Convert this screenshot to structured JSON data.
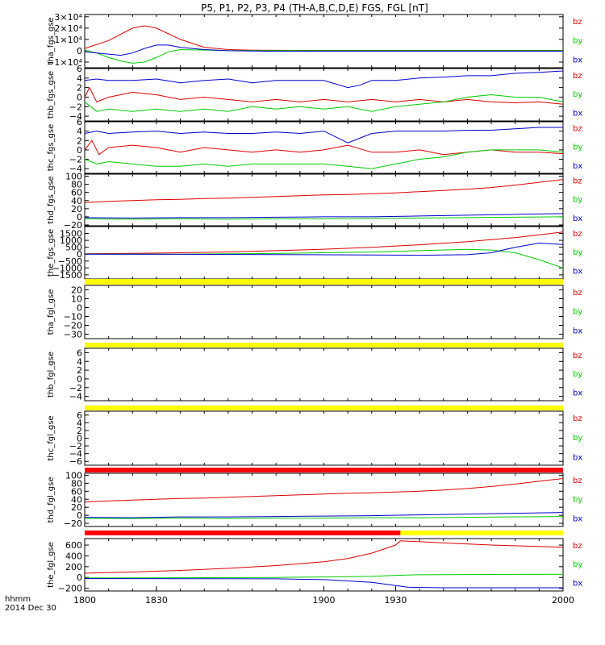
{
  "title": "P5, P1, P2, P3, P4 (TH-A,B,C,D,E) FGS, FGL [nT]",
  "footer": {
    "line1": "hhmm",
    "line2": "2014 Dec 30"
  },
  "xaxis": {
    "range": [
      1800,
      2000
    ],
    "tick_values": [
      1800,
      1830,
      1900,
      1930,
      2000
    ],
    "tick_labels": [
      "1800",
      "1830",
      "1900",
      "1930",
      "2000"
    ]
  },
  "colors": {
    "bz": "#dd0000",
    "by": "#00cc00",
    "bx": "#0000cc",
    "flag_yellow": "#ffff00",
    "flag_red": "#ff0000"
  },
  "chart_data": [
    {
      "type": "line",
      "ylabel": "tha_fgs_gse",
      "ylim": [
        -15000,
        32000
      ],
      "ytick_labels": [
        "3×10⁴",
        "2×10⁴",
        "1×10⁴",
        "0",
        "−1×10⁴"
      ],
      "ytick_values": [
        30000,
        20000,
        10000,
        0,
        -10000
      ],
      "legend": [
        "bz",
        "by",
        "bx"
      ],
      "series": [
        {
          "name": "bz",
          "x": [
            1800,
            1810,
            1820,
            1825,
            1830,
            1840,
            1850,
            1860,
            1870,
            1880,
            1890,
            1900,
            1920,
            2000
          ],
          "y": [
            2000,
            9000,
            20000,
            22000,
            20000,
            10000,
            3000,
            1000,
            500,
            400,
            300,
            300,
            300,
            300
          ]
        },
        {
          "name": "by",
          "x": [
            1800,
            1805,
            1810,
            1815,
            1820,
            1825,
            1830,
            1835,
            1840,
            1850,
            1860,
            1880,
            1920,
            2000
          ],
          "y": [
            500,
            -2000,
            -6000,
            -9000,
            -11000,
            -10000,
            -6000,
            -1000,
            1000,
            600,
            200,
            100,
            100,
            100
          ]
        },
        {
          "name": "bx",
          "x": [
            1800,
            1810,
            1815,
            1820,
            1825,
            1830,
            1835,
            1840,
            1850,
            1860,
            1880,
            1920,
            2000
          ],
          "y": [
            -1000,
            -3000,
            -4000,
            -2000,
            2000,
            5000,
            5000,
            3000,
            1000,
            0,
            -500,
            -400,
            -400
          ]
        }
      ]
    },
    {
      "type": "line",
      "ylabel": "thb_fgs_gse",
      "ylim": [
        -5,
        6
      ],
      "ytick_labels": [
        "6",
        "4",
        "2",
        "0",
        "−2",
        "−4"
      ],
      "ytick_values": [
        6,
        4,
        2,
        0,
        -2,
        -4
      ],
      "legend": [
        "bz",
        "by",
        "bx"
      ],
      "series": [
        {
          "name": "bz",
          "x": [
            1800,
            1802,
            1805,
            1810,
            1820,
            1830,
            1840,
            1850,
            1860,
            1870,
            1880,
            1890,
            1900,
            1910,
            1920,
            1930,
            1940,
            1950,
            1960,
            1970,
            1980,
            1990,
            2000
          ],
          "y": [
            0,
            2,
            -1,
            0,
            1,
            0.5,
            -0.5,
            0,
            -0.5,
            -1,
            -0.5,
            -1,
            -0.5,
            -1,
            -0.5,
            -1,
            -0.5,
            -1,
            -0.5,
            -1,
            -1.2,
            -1,
            -1.5
          ]
        },
        {
          "name": "by",
          "x": [
            1800,
            1805,
            1810,
            1820,
            1830,
            1840,
            1850,
            1860,
            1870,
            1880,
            1890,
            1900,
            1910,
            1920,
            1930,
            1940,
            1950,
            1960,
            1970,
            1980,
            1990,
            2000
          ],
          "y": [
            -1,
            -3,
            -2.5,
            -3,
            -2.5,
            -3,
            -2.5,
            -3,
            -2,
            -2.5,
            -2,
            -2.5,
            -2,
            -3,
            -2,
            -1.5,
            -1,
            0,
            0.5,
            0,
            0,
            -1
          ]
        },
        {
          "name": "bx",
          "x": [
            1800,
            1805,
            1810,
            1820,
            1830,
            1840,
            1850,
            1860,
            1870,
            1880,
            1890,
            1900,
            1910,
            1915,
            1920,
            1930,
            1940,
            1950,
            1960,
            1970,
            1980,
            1990,
            2000
          ],
          "y": [
            3.5,
            3.8,
            3.5,
            3.5,
            3.8,
            3,
            3.5,
            3.8,
            3,
            3.5,
            3.5,
            3.5,
            2,
            2.5,
            3.5,
            3.5,
            4,
            4.2,
            4.5,
            4.5,
            5,
            5.2,
            5.5
          ]
        }
      ]
    },
    {
      "type": "line",
      "ylabel": "thc_fgs_gse",
      "ylim": [
        -5,
        6
      ],
      "ytick_labels": [
        "6",
        "4",
        "2",
        "0",
        "−2",
        "−4"
      ],
      "ytick_values": [
        6,
        4,
        2,
        0,
        -2,
        -4
      ],
      "legend": [
        "bz",
        "by",
        "bx"
      ],
      "series": [
        {
          "name": "bz",
          "x": [
            1800,
            1803,
            1806,
            1810,
            1820,
            1830,
            1840,
            1850,
            1860,
            1870,
            1880,
            1890,
            1900,
            1910,
            1920,
            1930,
            1940,
            1950,
            1960,
            1970,
            1980,
            1990,
            2000
          ],
          "y": [
            0,
            2,
            -1,
            0.5,
            1,
            0.5,
            -0.5,
            0.5,
            0,
            -0.5,
            0,
            -0.5,
            0,
            1,
            -0.5,
            -0.5,
            0,
            -1,
            -0.5,
            0,
            -0.5,
            -0.5,
            -0.8
          ]
        },
        {
          "name": "by",
          "x": [
            1800,
            1805,
            1810,
            1820,
            1830,
            1840,
            1850,
            1860,
            1870,
            1880,
            1890,
            1900,
            1910,
            1920,
            1930,
            1940,
            1950,
            1960,
            1970,
            1980,
            1990,
            2000
          ],
          "y": [
            -2,
            -3,
            -2.5,
            -3,
            -3.5,
            -3.5,
            -3,
            -3.5,
            -3,
            -3,
            -3,
            -3,
            -3.5,
            -4,
            -3,
            -2,
            -1.5,
            -0.5,
            0,
            0,
            0,
            -0.5
          ]
        },
        {
          "name": "bx",
          "x": [
            1800,
            1805,
            1810,
            1820,
            1830,
            1840,
            1850,
            1860,
            1870,
            1880,
            1890,
            1900,
            1910,
            1915,
            1920,
            1930,
            1940,
            1950,
            1960,
            1970,
            1980,
            1990,
            2000
          ],
          "y": [
            3.5,
            4,
            3.5,
            3.8,
            4,
            3.5,
            3.8,
            3.5,
            3.5,
            3.8,
            3.5,
            4,
            1.5,
            2.5,
            3.5,
            4,
            4,
            4,
            4.2,
            4.2,
            4.5,
            4.8,
            4.8
          ]
        }
      ]
    },
    {
      "type": "line",
      "ylabel": "thd_fgs_gse",
      "ylim": [
        -22,
        105
      ],
      "ytick_labels": [
        "100",
        "80",
        "60",
        "40",
        "20",
        "0",
        "−20"
      ],
      "ytick_values": [
        100,
        80,
        60,
        40,
        20,
        0,
        -20
      ],
      "legend": [
        "bz",
        "by",
        "bx"
      ],
      "series": [
        {
          "name": "bz",
          "x": [
            1800,
            1810,
            1820,
            1830,
            1840,
            1850,
            1860,
            1870,
            1880,
            1890,
            1900,
            1910,
            1920,
            1930,
            1940,
            1950,
            1960,
            1970,
            1980,
            1990,
            2000
          ],
          "y": [
            35,
            38,
            40,
            42,
            43,
            45,
            46,
            48,
            50,
            52,
            54,
            55,
            57,
            59,
            62,
            65,
            68,
            72,
            78,
            85,
            92
          ]
        },
        {
          "name": "by",
          "x": [
            1800,
            1820,
            1840,
            1860,
            1880,
            1900,
            1920,
            1940,
            1960,
            1980,
            2000
          ],
          "y": [
            -5,
            -6,
            -5,
            -6,
            -5,
            -5,
            -4,
            -3,
            -2,
            -1,
            0
          ]
        },
        {
          "name": "bx",
          "x": [
            1800,
            1820,
            1840,
            1860,
            1880,
            1900,
            1920,
            1940,
            1960,
            1980,
            2000
          ],
          "y": [
            -2,
            -3,
            -2,
            -2,
            -1,
            0,
            0,
            2,
            4,
            6,
            8
          ]
        }
      ]
    },
    {
      "type": "line",
      "ylabel": "the_fgs_gse",
      "ylim": [
        -1800,
        2000
      ],
      "ytick_labels": [
        "1500",
        "1000",
        "500",
        "0",
        "−500",
        "−1000",
        "−1500"
      ],
      "ytick_values": [
        1500,
        1000,
        500,
        0,
        -500,
        -1000,
        -1500
      ],
      "legend": [
        "bz",
        "by",
        "bx"
      ],
      "series": [
        {
          "name": "bz",
          "x": [
            1800,
            1820,
            1840,
            1860,
            1880,
            1900,
            1920,
            1940,
            1960,
            1980,
            2000
          ],
          "y": [
            30,
            60,
            100,
            160,
            250,
            360,
            500,
            680,
            900,
            1200,
            1600
          ]
        },
        {
          "name": "by",
          "x": [
            1800,
            1840,
            1880,
            1920,
            1940,
            1960,
            1970,
            1980,
            1990,
            2000
          ],
          "y": [
            0,
            0,
            50,
            150,
            250,
            350,
            300,
            100,
            -400,
            -1000
          ]
        },
        {
          "name": "bx",
          "x": [
            1800,
            1840,
            1880,
            1920,
            1940,
            1960,
            1970,
            1980,
            1990,
            2000
          ],
          "y": [
            0,
            -10,
            -30,
            -60,
            -80,
            -40,
            100,
            500,
            800,
            700
          ]
        }
      ]
    },
    {
      "type": "line",
      "ylabel": "tha_fgl_gse",
      "ylim": [
        -35,
        25
      ],
      "ytick_labels": [
        "20",
        "10",
        "0",
        "−10",
        "−20",
        "−30"
      ],
      "ytick_values": [
        20,
        10,
        0,
        -10,
        -20,
        -30
      ],
      "legend": [
        "bz",
        "by",
        "bx"
      ],
      "series": []
    },
    {
      "type": "line",
      "ylabel": "thb_fgl_gse",
      "ylim": [
        -5,
        7
      ],
      "ytick_labels": [
        "6",
        "4",
        "2",
        "0",
        "−2",
        "−4"
      ],
      "ytick_values": [
        6,
        4,
        2,
        0,
        -2,
        -4
      ],
      "legend": [
        "bz",
        "by",
        "bx"
      ],
      "series": []
    },
    {
      "type": "line",
      "ylabel": "thc_fgl_gse",
      "ylim": [
        -7,
        7
      ],
      "ytick_labels": [
        "6",
        "4",
        "2",
        "0",
        "−2",
        "−4",
        "−6"
      ],
      "ytick_values": [
        6,
        4,
        2,
        0,
        -2,
        -4,
        -6
      ],
      "legend": [
        "bz",
        "by",
        "bx"
      ],
      "series": []
    },
    {
      "type": "line",
      "ylabel": "thd_fgl_gse",
      "ylim": [
        -28,
        105
      ],
      "ytick_labels": [
        "100",
        "80",
        "60",
        "40",
        "20",
        "0",
        "−20"
      ],
      "ytick_values": [
        100,
        80,
        60,
        40,
        20,
        0,
        -20
      ],
      "legend": [
        "bz",
        "by",
        "bx"
      ],
      "series": [
        {
          "name": "bz",
          "x": [
            1800,
            1810,
            1820,
            1830,
            1840,
            1850,
            1860,
            1870,
            1880,
            1890,
            1900,
            1910,
            1920,
            1930,
            1940,
            1950,
            1960,
            1970,
            1980,
            1990,
            2000
          ],
          "y": [
            33,
            36,
            38,
            40,
            42,
            43,
            45,
            47,
            49,
            51,
            53,
            55,
            56,
            58,
            60,
            63,
            67,
            72,
            78,
            85,
            92
          ]
        },
        {
          "name": "by",
          "x": [
            1800,
            1820,
            1840,
            1860,
            1880,
            1900,
            1920,
            1940,
            1960,
            1980,
            2000
          ],
          "y": [
            -8,
            -8,
            -7,
            -8,
            -7,
            -7,
            -6,
            -6,
            -5,
            -4,
            -3
          ]
        },
        {
          "name": "bx",
          "x": [
            1800,
            1820,
            1840,
            1860,
            1880,
            1900,
            1920,
            1940,
            1960,
            1980,
            2000
          ],
          "y": [
            -5,
            -6,
            -4,
            -4,
            -3,
            -2,
            -1,
            1,
            3,
            5,
            7
          ]
        }
      ]
    },
    {
      "type": "line",
      "ylabel": "the_fgl_gse",
      "ylim": [
        -250,
        720
      ],
      "ytick_labels": [
        "600",
        "400",
        "200",
        "0",
        "−200"
      ],
      "ytick_values": [
        600,
        400,
        200,
        0,
        -200
      ],
      "legend": [
        "bz",
        "by",
        "bx"
      ],
      "series": [
        {
          "name": "bz",
          "x": [
            1800,
            1820,
            1840,
            1860,
            1880,
            1900,
            1910,
            1920,
            1930,
            1932,
            1950,
            1970,
            2000
          ],
          "y": [
            80,
            100,
            130,
            170,
            220,
            290,
            350,
            450,
            600,
            680,
            640,
            600,
            560
          ]
        },
        {
          "name": "by",
          "x": [
            1800,
            1840,
            1880,
            1900,
            1920,
            1930,
            1940,
            1960,
            1980,
            2000
          ],
          "y": [
            -10,
            -5,
            0,
            10,
            20,
            40,
            50,
            55,
            58,
            60
          ]
        },
        {
          "name": "bx",
          "x": [
            1800,
            1840,
            1880,
            1900,
            1920,
            1930,
            1935,
            1950,
            1970,
            2000
          ],
          "y": [
            -20,
            -22,
            -25,
            -40,
            -90,
            -150,
            -180,
            -190,
            -190,
            -190
          ]
        }
      ]
    }
  ],
  "flag_bars": [
    {
      "after_panel": 4,
      "segments": [
        {
          "from": 1800,
          "to": 2000,
          "color": "yellow"
        }
      ]
    },
    {
      "after_panel": 5,
      "segments": [
        {
          "from": 1800,
          "to": 2000,
          "color": "yellow"
        }
      ]
    },
    {
      "after_panel": 6,
      "segments": [
        {
          "from": 1800,
          "to": 2000,
          "color": "yellow"
        }
      ]
    },
    {
      "after_panel": 7,
      "segments": [
        {
          "from": 1800,
          "to": 2000,
          "color": "red"
        }
      ]
    },
    {
      "after_panel": 8,
      "segments": [
        {
          "from": 1800,
          "to": 1932,
          "color": "red"
        },
        {
          "from": 1932,
          "to": 2000,
          "color": "yellow"
        }
      ]
    }
  ]
}
